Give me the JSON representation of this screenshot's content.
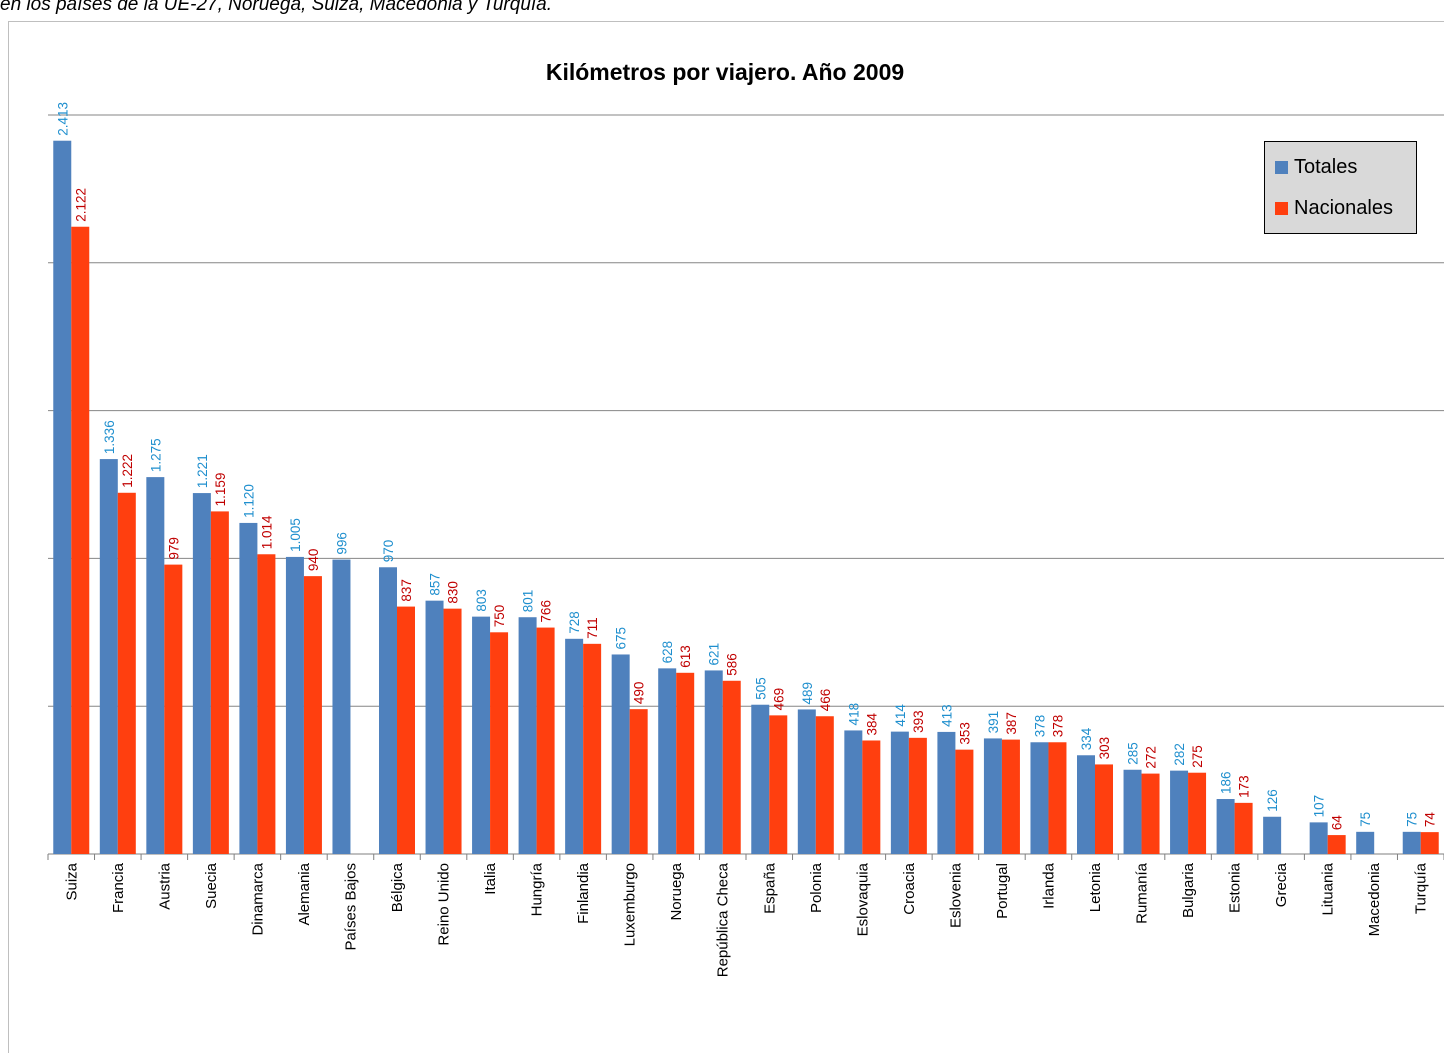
{
  "caption": "en los países de la UE-27, Noruega, Suiza, Macedonia y Turquía.",
  "colors": {
    "totales": "#4f81bd",
    "nacionales": "#ff3f0f",
    "label_totales": "#1f8fce",
    "label_nacionales": "#c00000",
    "grid": "#868686"
  },
  "chart_data": {
    "type": "bar",
    "title": "Kilómetros por viajero. Año 2009",
    "xlabel": "",
    "ylabel": "",
    "ylim": [
      0,
      2500
    ],
    "grid": true,
    "legend_position": "top-right",
    "categories": [
      "Suiza",
      "Francia",
      "Austria",
      "Suecia",
      "Dinamarca",
      "Alemania",
      "Países Bajos",
      "Bélgica",
      "Reino Unido",
      "Italia",
      "Hungría",
      "Finlandia",
      "Luxemburgo",
      "Noruega",
      "República Checa",
      "España",
      "Polonia",
      "Eslovaquia",
      "Croacia",
      "Eslovenia",
      "Portugal",
      "Irlanda",
      "Letonia",
      "Rumanía",
      "Bulgaria",
      "Estonia",
      "Grecia",
      "Lituania",
      "Macedonia",
      "Turquía"
    ],
    "series": [
      {
        "name": "Totales",
        "values": [
          2413,
          1336,
          1275,
          1221,
          1120,
          1005,
          996,
          970,
          857,
          803,
          801,
          728,
          675,
          628,
          621,
          505,
          489,
          418,
          414,
          413,
          391,
          378,
          334,
          285,
          282,
          186,
          126,
          107,
          75,
          75
        ],
        "labels": [
          "2.413",
          "1.336",
          "1.275",
          "1.221",
          "1.120",
          "1.005",
          "996",
          "970",
          "857",
          "803",
          "801",
          "728",
          "675",
          "628",
          "621",
          "505",
          "489",
          "418",
          "414",
          "413",
          "391",
          "378",
          "334",
          "285",
          "282",
          "186",
          "126",
          "107",
          "75",
          "75"
        ]
      },
      {
        "name": "Nacionales",
        "values": [
          2122,
          1222,
          979,
          1159,
          1014,
          940,
          null,
          837,
          830,
          750,
          766,
          711,
          490,
          613,
          586,
          469,
          466,
          384,
          393,
          353,
          387,
          378,
          303,
          272,
          275,
          173,
          null,
          64,
          null,
          74
        ],
        "labels": [
          "2.122",
          "1.222",
          "979",
          "1.159",
          "1.014",
          "940",
          null,
          "837",
          "830",
          "750",
          "766",
          "711",
          "490",
          "613",
          "586",
          "469",
          "466",
          "384",
          "393",
          "353",
          "387",
          "378",
          "303",
          "272",
          "275",
          "173",
          null,
          "64",
          null,
          "74"
        ]
      }
    ]
  }
}
